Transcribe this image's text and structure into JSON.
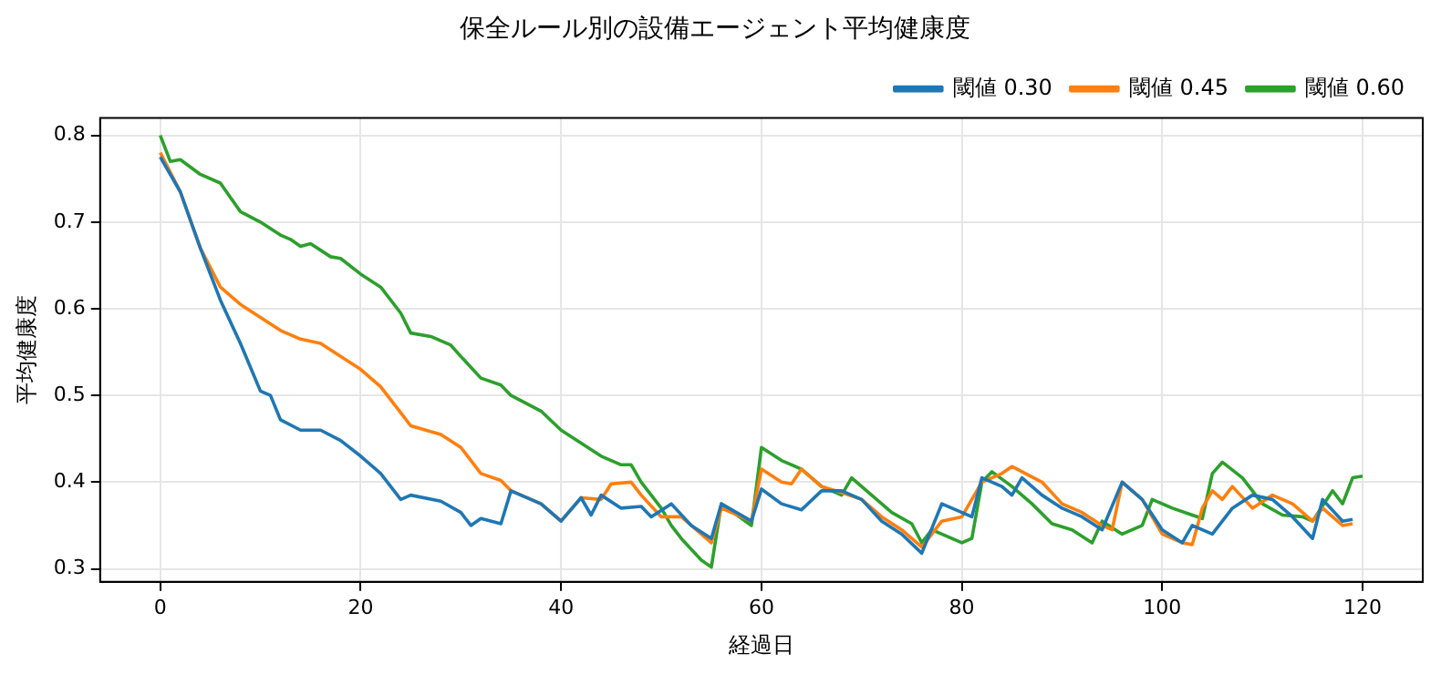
{
  "chart_data": {
    "type": "line",
    "title": "保全ルール別の設備エージェント平均健康度",
    "xlabel": "経過日",
    "ylabel": "平均健康度",
    "xlim": [
      -6,
      126
    ],
    "xticks": [
      0,
      20,
      40,
      60,
      80,
      100,
      120
    ],
    "ylim": [
      0.285,
      0.82
    ],
    "yticks": [
      0.3,
      0.4,
      0.5,
      0.6,
      0.7,
      0.8
    ],
    "grid": true,
    "legend": "top right",
    "marker": "none",
    "line_style": "solid",
    "series": [
      {
        "name": "閾値 0.30",
        "color": "#1f77b4",
        "x": [
          0,
          2,
          4,
          6,
          8,
          10,
          11,
          12,
          14,
          16,
          18,
          20,
          22,
          24,
          25,
          28,
          30,
          31,
          32,
          34,
          35,
          38,
          40,
          42,
          43,
          44,
          46,
          48,
          49,
          51,
          53,
          55,
          56,
          59,
          60,
          62,
          64,
          66,
          68,
          70,
          72,
          74,
          76,
          78,
          80,
          81,
          82,
          84,
          85,
          86,
          88,
          90,
          92,
          94,
          96,
          98,
          100,
          102,
          103,
          105,
          107,
          109,
          111,
          113,
          115,
          116,
          118,
          119
        ],
        "values": [
          0.775,
          0.735,
          0.67,
          0.61,
          0.56,
          0.505,
          0.5,
          0.472,
          0.46,
          0.46,
          0.448,
          0.43,
          0.41,
          0.38,
          0.385,
          0.378,
          0.365,
          0.35,
          0.358,
          0.352,
          0.39,
          0.375,
          0.355,
          0.382,
          0.362,
          0.385,
          0.37,
          0.372,
          0.36,
          0.375,
          0.35,
          0.335,
          0.375,
          0.355,
          0.392,
          0.375,
          0.368,
          0.39,
          0.39,
          0.38,
          0.355,
          0.34,
          0.318,
          0.375,
          0.365,
          0.36,
          0.405,
          0.395,
          0.385,
          0.405,
          0.385,
          0.37,
          0.36,
          0.345,
          0.4,
          0.38,
          0.345,
          0.33,
          0.35,
          0.34,
          0.37,
          0.385,
          0.38,
          0.36,
          0.335,
          0.38,
          0.355,
          0.357
        ]
      },
      {
        "name": "閾値 0.45",
        "color": "#ff7f0e",
        "x": [
          0,
          2,
          4,
          6,
          8,
          10,
          12,
          14,
          16,
          18,
          20,
          22,
          24,
          25,
          28,
          30,
          32,
          34,
          35,
          38,
          40,
          42,
          44,
          45,
          47,
          48,
          50,
          52,
          54,
          55,
          56,
          59,
          60,
          62,
          63,
          64,
          66,
          68,
          70,
          72,
          74,
          76,
          78,
          80,
          82,
          84,
          85,
          88,
          90,
          92,
          94,
          95,
          96,
          98,
          100,
          102,
          103,
          104,
          105,
          106,
          107,
          109,
          111,
          113,
          115,
          116,
          118,
          119
        ],
        "values": [
          0.78,
          0.735,
          0.67,
          0.625,
          0.605,
          0.59,
          0.575,
          0.565,
          0.56,
          0.545,
          0.53,
          0.51,
          0.48,
          0.465,
          0.455,
          0.44,
          0.41,
          0.402,
          0.39,
          0.375,
          0.355,
          0.382,
          0.38,
          0.398,
          0.4,
          0.385,
          0.36,
          0.36,
          0.34,
          0.33,
          0.37,
          0.355,
          0.415,
          0.4,
          0.398,
          0.415,
          0.395,
          0.388,
          0.38,
          0.36,
          0.345,
          0.325,
          0.355,
          0.36,
          0.4,
          0.41,
          0.418,
          0.4,
          0.375,
          0.365,
          0.35,
          0.345,
          0.4,
          0.38,
          0.34,
          0.33,
          0.328,
          0.37,
          0.39,
          0.38,
          0.395,
          0.37,
          0.385,
          0.375,
          0.355,
          0.37,
          0.35,
          0.352
        ]
      },
      {
        "name": "閾値 0.60",
        "color": "#2ca02c",
        "x": [
          0,
          1,
          2,
          4,
          6,
          8,
          10,
          12,
          13,
          14,
          15,
          17,
          18,
          20,
          22,
          24,
          25,
          27,
          29,
          30,
          32,
          34,
          35,
          38,
          40,
          42,
          44,
          46,
          47,
          48,
          50,
          51,
          52,
          54,
          55,
          56,
          59,
          60,
          62,
          64,
          66,
          68,
          69,
          71,
          73,
          75,
          76,
          77,
          78,
          80,
          81,
          82,
          83,
          85,
          87,
          89,
          91,
          93,
          94,
          96,
          98,
          99,
          101,
          103,
          104,
          105,
          106,
          108,
          110,
          112,
          114,
          115,
          117,
          118,
          119,
          120
        ],
        "values": [
          0.8,
          0.77,
          0.772,
          0.755,
          0.745,
          0.712,
          0.7,
          0.685,
          0.68,
          0.672,
          0.675,
          0.66,
          0.658,
          0.64,
          0.625,
          0.595,
          0.572,
          0.568,
          0.558,
          0.545,
          0.52,
          0.512,
          0.5,
          0.482,
          0.46,
          0.445,
          0.43,
          0.42,
          0.42,
          0.4,
          0.37,
          0.35,
          0.335,
          0.31,
          0.302,
          0.375,
          0.35,
          0.44,
          0.425,
          0.415,
          0.395,
          0.385,
          0.405,
          0.385,
          0.365,
          0.352,
          0.33,
          0.345,
          0.34,
          0.33,
          0.335,
          0.4,
          0.412,
          0.395,
          0.375,
          0.352,
          0.345,
          0.33,
          0.355,
          0.34,
          0.35,
          0.38,
          0.37,
          0.362,
          0.358,
          0.41,
          0.423,
          0.405,
          0.375,
          0.362,
          0.36,
          0.355,
          0.39,
          0.375,
          0.405,
          0.407
        ]
      }
    ]
  }
}
